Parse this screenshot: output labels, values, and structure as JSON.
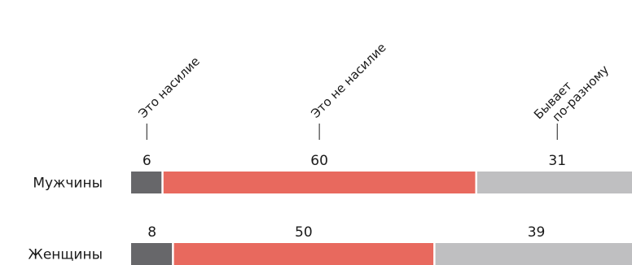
{
  "chart_data": {
    "type": "bar",
    "orientation": "horizontal",
    "stacked": true,
    "categories": [
      "Мужчины",
      "Женщины"
    ],
    "series": [
      {
        "name": "Это насилие",
        "values": [
          6,
          8
        ],
        "color": "#67676a"
      },
      {
        "name": "Это не насилие",
        "values": [
          60,
          50
        ],
        "color": "#e8695e"
      },
      {
        "name": "Бывает по-разному",
        "name_lines": [
          "Бывает",
          "по-разному"
        ],
        "values": [
          31,
          39
        ],
        "color": "#bfbfc1"
      }
    ],
    "legend_placement": "top, rotated labels above value labels",
    "grid": false
  }
}
